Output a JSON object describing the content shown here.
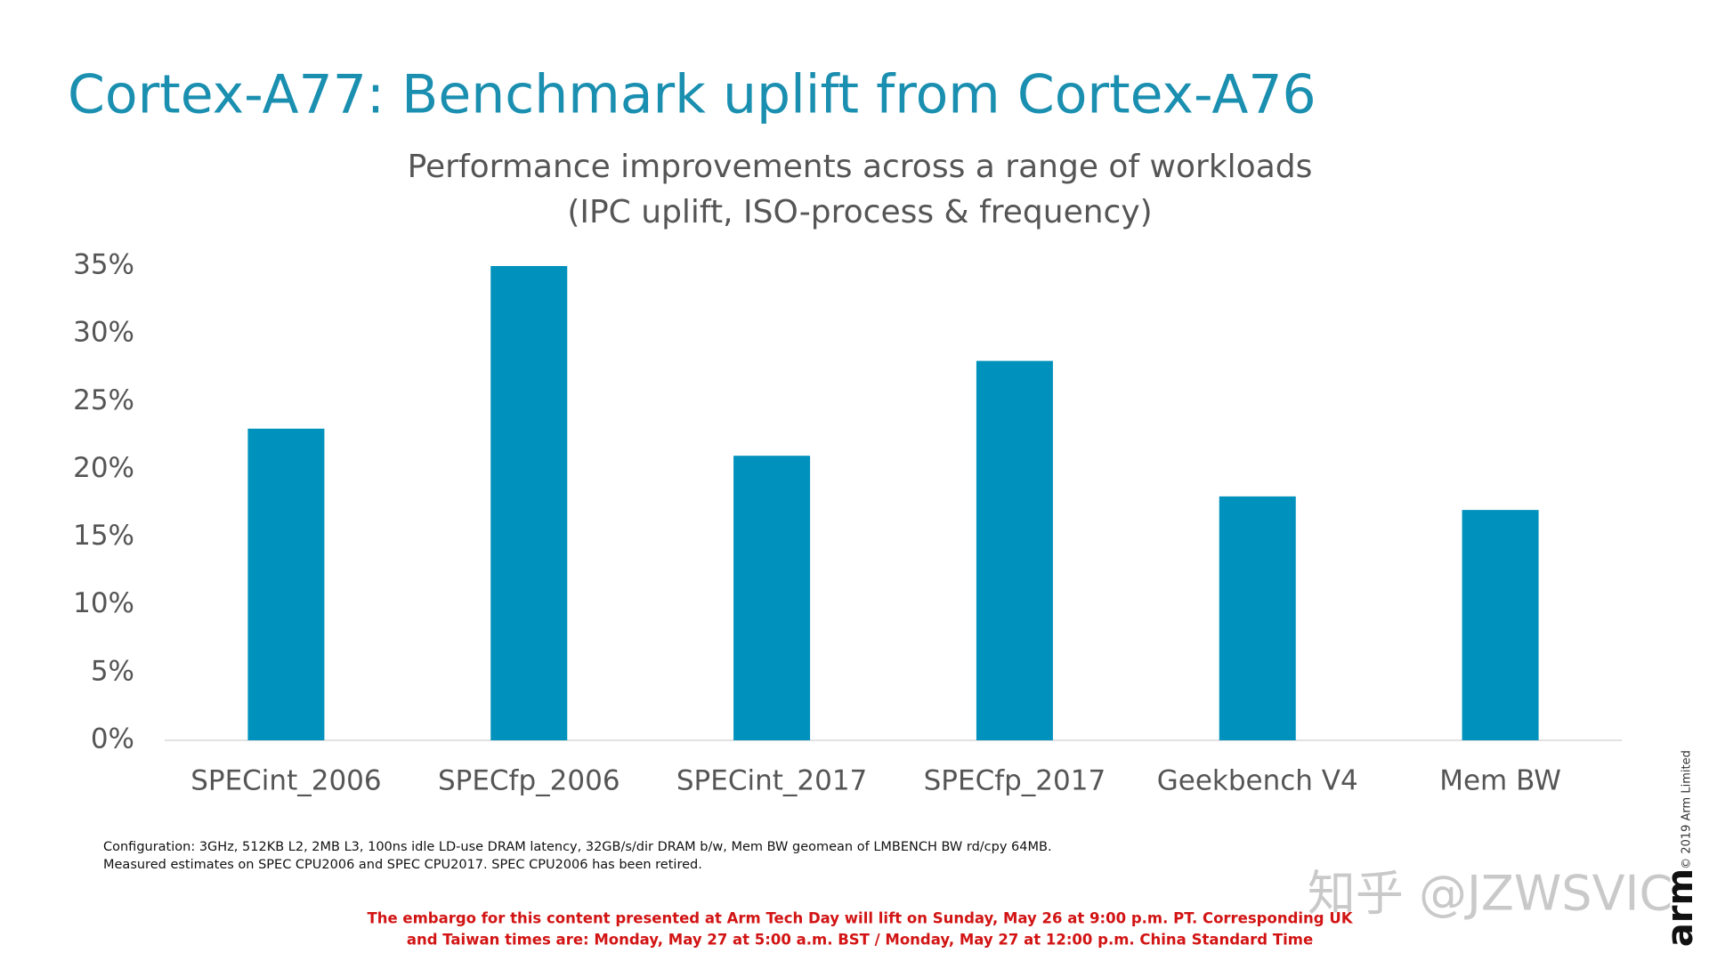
{
  "chart_data": {
    "type": "bar",
    "title": "Cortex-A77: Benchmark uplift from Cortex-A76",
    "subtitle": [
      "Performance improvements across a range of workloads",
      "(IPC uplift, ISO-process & frequency)"
    ],
    "categories": [
      "SPECint_2006",
      "SPECfp_2006",
      "SPECint_2017",
      "SPECfp_2017",
      "Geekbench V4",
      "Mem BW"
    ],
    "values": [
      23,
      35,
      21,
      28,
      18,
      17
    ],
    "color": "#0091bd",
    "ylim": [
      0,
      35
    ],
    "yticks": [
      {
        "value": 0,
        "label": "0%"
      },
      {
        "value": 5,
        "label": "5%"
      },
      {
        "value": 10,
        "label": "10%"
      },
      {
        "value": 15,
        "label": "15%"
      },
      {
        "value": 20,
        "label": "20%"
      },
      {
        "value": 25,
        "label": "25%"
      },
      {
        "value": 30,
        "label": "30%"
      },
      {
        "value": 35,
        "label": "35%"
      }
    ],
    "grid": false,
    "footnote": [
      "Configuration: 3GHz, 512KB L2, 2MB L3, 100ns idle LD-use DRAM latency, 32GB/s/dir DRAM b/w, Mem BW geomean of LMBENCH BW rd/cpy 64MB.",
      "Measured estimates on SPEC CPU2006 and SPEC CPU2017.  SPEC CPU2006 has been retired."
    ],
    "embargo": [
      "The embargo for this content presented at Arm Tech Day will lift on Sunday, May 26 at 9:00 p.m. PT.  Corresponding UK",
      "and Taiwan times are: Monday, May 27 at 5:00 a.m. BST / Monday, May 27 at 12:00 p.m. China Standard Time"
    ],
    "copyright": "© 2019 Arm Limited",
    "logo": "arm",
    "watermark": "知乎 @JZWSVIC"
  }
}
